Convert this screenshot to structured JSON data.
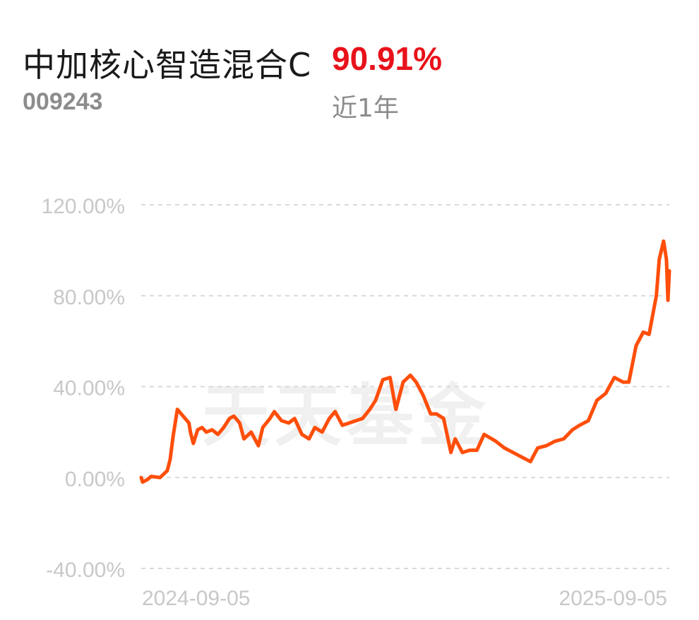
{
  "header": {
    "fund_name": "中加核心智造混合C",
    "return_value": "90.91%",
    "fund_code": "009243",
    "period_label": "近1年"
  },
  "colors": {
    "line": "#ff4e0a",
    "return_red": "#e8121b",
    "grid": "#d9d9d9",
    "axis_text": "#c8c8c8"
  },
  "chart_data": {
    "type": "line",
    "title": "",
    "xlabel": "",
    "ylabel": "",
    "ylim": [
      -40,
      120
    ],
    "yticks": [
      120,
      80,
      40,
      0,
      -40
    ],
    "ytick_labels": [
      "120.00%",
      "80.00%",
      "40.00%",
      "0.00%",
      "-40.00%"
    ],
    "xtick_labels": [
      "2024-09-05",
      "2025-09-05"
    ],
    "grid": true,
    "watermark": "天天基金",
    "series": [
      {
        "x": [
          "2024-09-05",
          "2024-09-06",
          "2024-09-09",
          "2024-09-12",
          "2024-09-18",
          "2024-09-23",
          "2024-09-25",
          "2024-09-27",
          "2024-09-30",
          "2024-10-08",
          "2024-10-09",
          "2024-10-11",
          "2024-10-14",
          "2024-10-17",
          "2024-10-20",
          "2024-10-24",
          "2024-10-28",
          "2024-11-01",
          "2024-11-05",
          "2024-11-08",
          "2024-11-12",
          "2024-11-15",
          "2024-11-20",
          "2024-11-25",
          "2024-11-28",
          "2024-12-03",
          "2024-12-06",
          "2024-12-11",
          "2024-12-16",
          "2024-12-20",
          "2024-12-25",
          "2024-12-30",
          "2025-01-03",
          "2025-01-08",
          "2025-01-13",
          "2025-01-17",
          "2025-01-22",
          "2025-02-05",
          "2025-02-10",
          "2025-02-14",
          "2025-02-19",
          "2025-02-24",
          "2025-02-28",
          "2025-03-05",
          "2025-03-10",
          "2025-03-14",
          "2025-03-19",
          "2025-03-24",
          "2025-03-28",
          "2025-04-02",
          "2025-04-07",
          "2025-04-10",
          "2025-04-15",
          "2025-04-20",
          "2025-04-25",
          "2025-04-30",
          "2025-05-08",
          "2025-05-14",
          "2025-05-20",
          "2025-05-26",
          "2025-06-01",
          "2025-06-06",
          "2025-06-12",
          "2025-06-18",
          "2025-06-24",
          "2025-06-30",
          "2025-07-05",
          "2025-07-11",
          "2025-07-17",
          "2025-07-23",
          "2025-07-29",
          "2025-08-04",
          "2025-08-08",
          "2025-08-13",
          "2025-08-18",
          "2025-08-22",
          "2025-08-27",
          "2025-08-29",
          "2025-09-01",
          "2025-09-03",
          "2025-09-04",
          "2025-09-05"
        ],
        "values": [
          0.0,
          -2.0,
          -1.0,
          0.5,
          0.0,
          3.0,
          8.0,
          18.0,
          30.0,
          24.0,
          20.0,
          15.0,
          21.0,
          22.0,
          20.0,
          21.0,
          19.0,
          22.0,
          26.0,
          27.0,
          24.0,
          17.0,
          20.0,
          14.0,
          22.0,
          26.0,
          29.0,
          25.0,
          24.0,
          26.0,
          19.0,
          17.0,
          22.0,
          20.0,
          26.0,
          29.0,
          23.0,
          26.0,
          30.0,
          34.0,
          43.0,
          44.0,
          30.0,
          42.0,
          45.0,
          42.0,
          36.0,
          28.0,
          28.0,
          26.0,
          11.0,
          17.0,
          11.0,
          12.0,
          12.0,
          19.0,
          16.0,
          13.0,
          11.0,
          9.0,
          7.0,
          13.0,
          14.0,
          16.0,
          17.0,
          21.0,
          23.0,
          25.0,
          34.0,
          37.0,
          44.0,
          42.0,
          42.0,
          58.0,
          64.0,
          63.0,
          80.0,
          96.0,
          104.0,
          96.0,
          78.0,
          90.91
        ]
      }
    ]
  }
}
